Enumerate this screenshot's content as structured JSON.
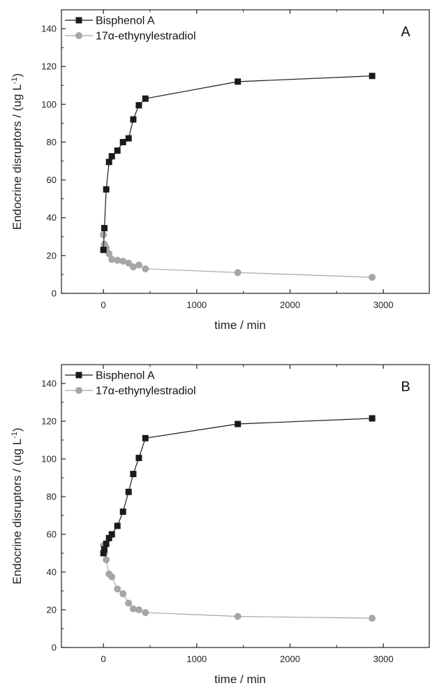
{
  "chart_data": [
    {
      "type": "line",
      "panel_label": "A",
      "xlabel": "time / min",
      "ylabel_main": "Endocrine disruptors / (ug L",
      "ylabel_sup": "-1",
      "ylabel_close": ")",
      "xlim": [
        -450,
        3500
      ],
      "ylim": [
        0,
        150
      ],
      "xticks": [
        0,
        1000,
        2000,
        3000
      ],
      "yticks": [
        0,
        20,
        40,
        60,
        80,
        100,
        120,
        140
      ],
      "legend_position": "top-left",
      "series": [
        {
          "name": "Bisphenol A",
          "marker": "square",
          "color": "#1a1a1a",
          "x": [
            0,
            10,
            30,
            60,
            90,
            150,
            210,
            270,
            320,
            380,
            450,
            1440,
            2880
          ],
          "y": [
            23,
            34.5,
            55,
            69.5,
            72.5,
            75.5,
            80,
            82,
            92,
            99.5,
            103,
            112,
            115
          ]
        },
        {
          "name": "17α-ethynylestradiol",
          "marker": "circle",
          "color": "#a6a6a6",
          "x": [
            0,
            10,
            30,
            60,
            90,
            150,
            210,
            270,
            320,
            380,
            450,
            1440,
            2880
          ],
          "y": [
            31,
            26,
            24,
            21,
            18,
            17.5,
            17,
            16,
            14,
            15,
            13,
            11,
            8.5
          ]
        }
      ]
    },
    {
      "type": "line",
      "panel_label": "B",
      "xlabel": "time / min",
      "ylabel_main": "Endocrine disruptors / (ug L",
      "ylabel_sup": "-1",
      "ylabel_close": ")",
      "xlim": [
        -450,
        3500
      ],
      "ylim": [
        0,
        150
      ],
      "xticks": [
        0,
        1000,
        2000,
        3000
      ],
      "yticks": [
        0,
        20,
        40,
        60,
        80,
        100,
        120,
        140
      ],
      "legend_position": "top-left",
      "series": [
        {
          "name": "Bisphenol A",
          "marker": "square",
          "color": "#1a1a1a",
          "x": [
            0,
            10,
            30,
            60,
            90,
            150,
            210,
            270,
            320,
            380,
            450,
            1440,
            2880
          ],
          "y": [
            50,
            52,
            55,
            58,
            60,
            64.5,
            72,
            82.5,
            92,
            100.5,
            111,
            118.5,
            121.5
          ]
        },
        {
          "name": "17α-ethynylestradiol",
          "marker": "circle",
          "color": "#a6a6a6",
          "x": [
            0,
            10,
            30,
            60,
            90,
            150,
            210,
            270,
            320,
            380,
            450,
            1440,
            2880
          ],
          "y": [
            54,
            50,
            46.5,
            39,
            37.5,
            31,
            28.5,
            23.5,
            20.5,
            20,
            18.5,
            16.5,
            15.5
          ]
        }
      ]
    }
  ]
}
